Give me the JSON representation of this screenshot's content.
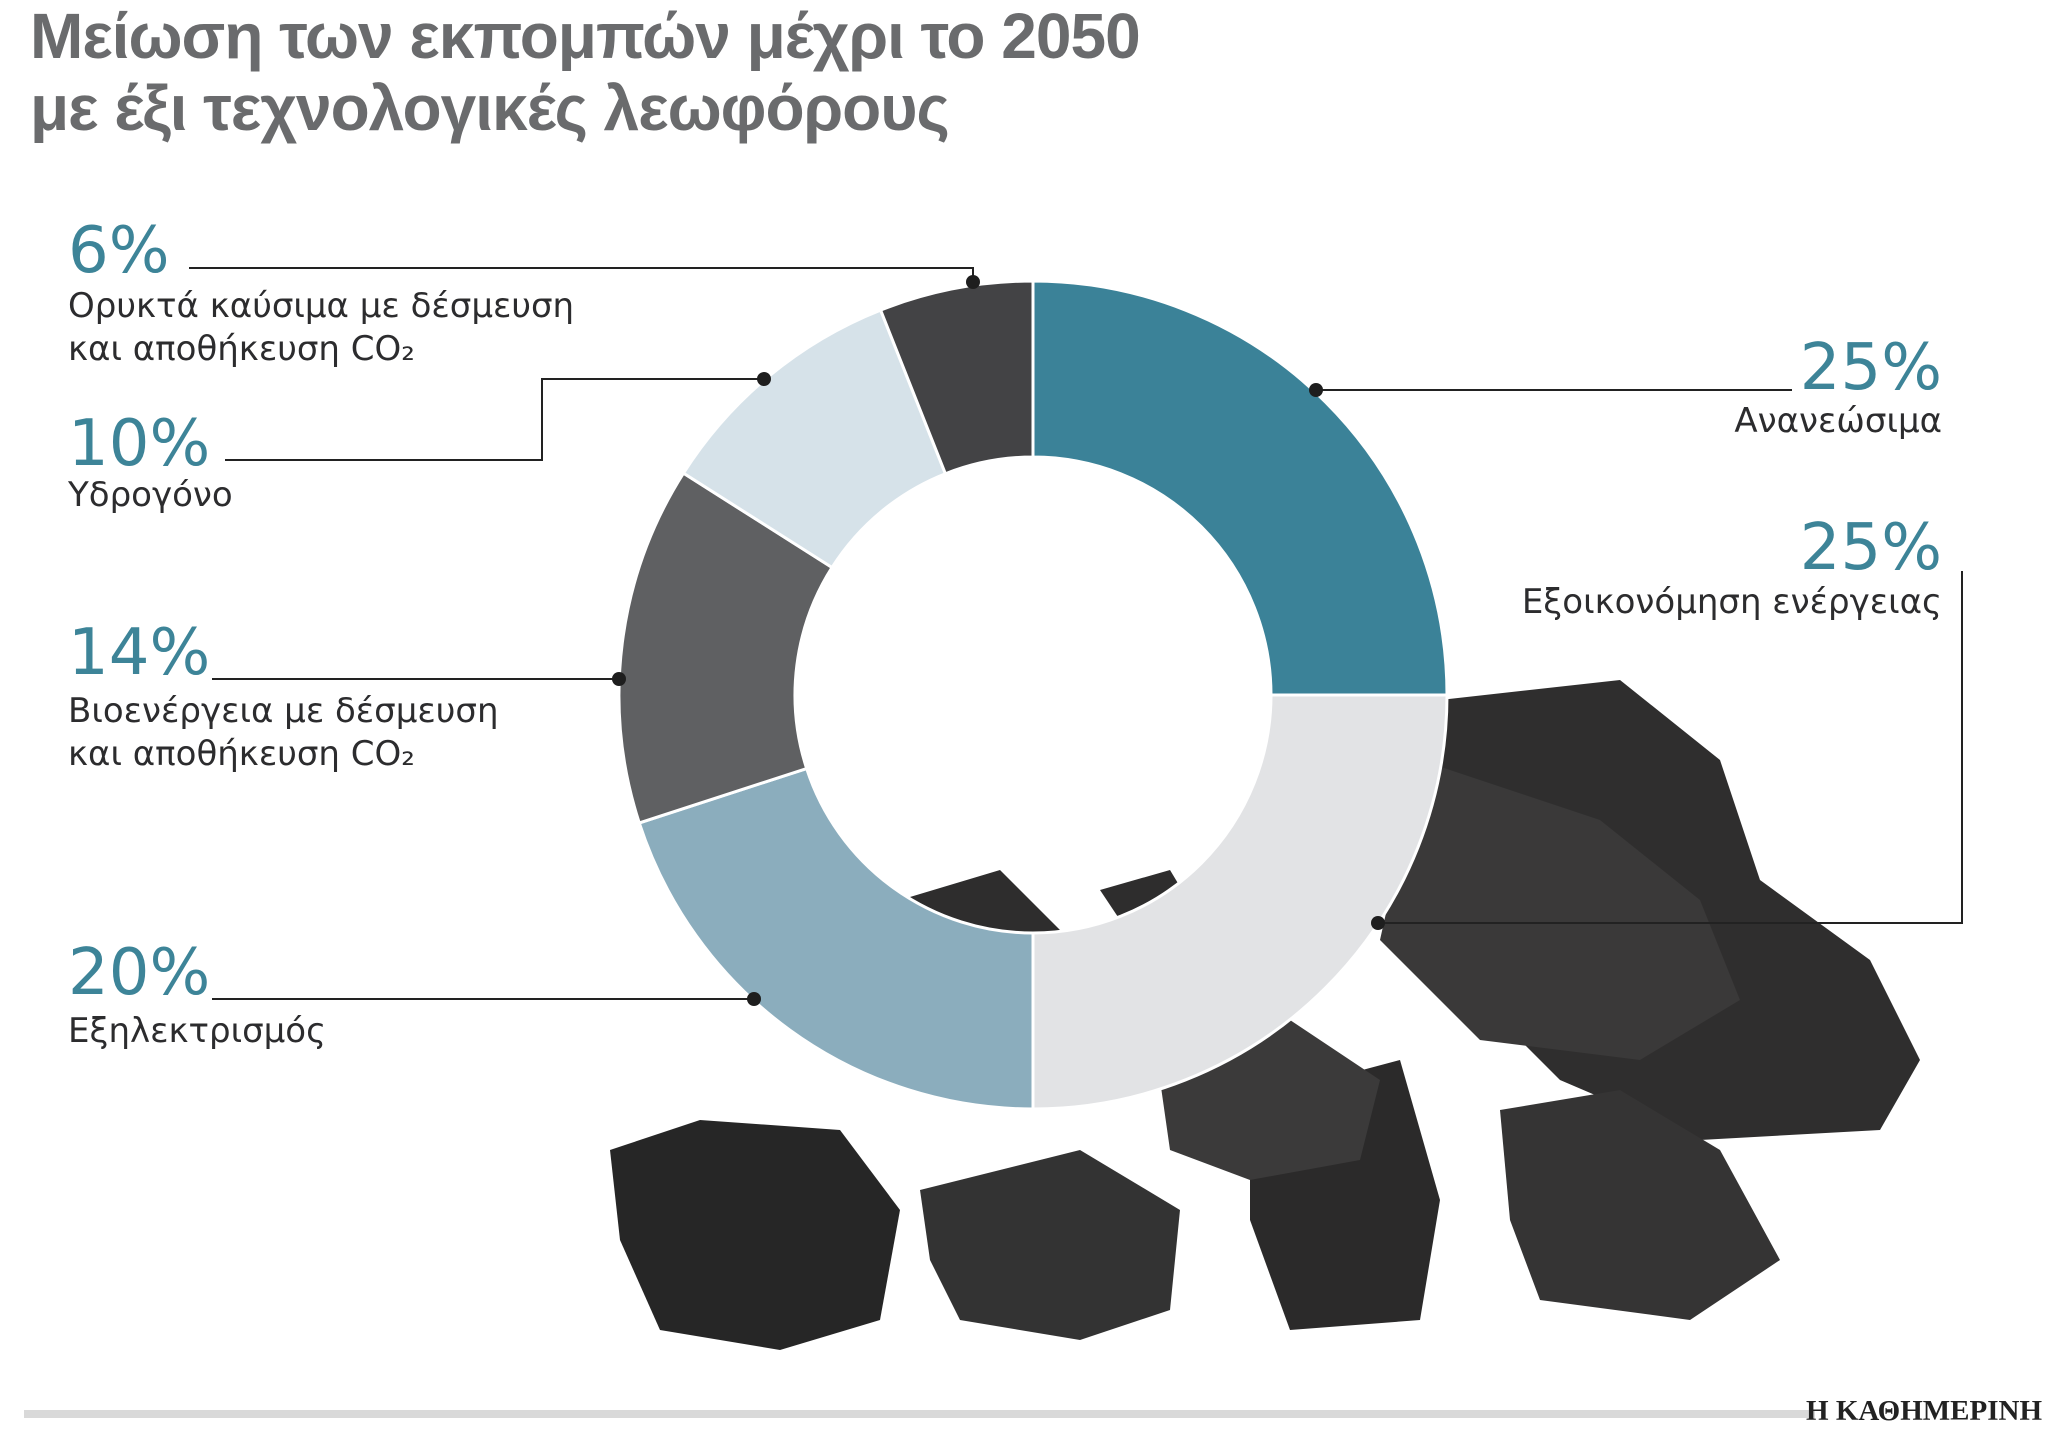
{
  "chart_data": {
    "type": "donut",
    "title": "Μείωση των εκπομπών μέχρι το 2050\nμε έξι τεχνολογικές λεωφόρους",
    "categories": [
      "Ανανεώσιμα",
      "Εξοικονόμηση ενέργειας",
      "Εξηλεκτρισμός",
      "Βιοενέργεια με δέσμευση\nκαι αποθήκευση CO₂",
      "Υδρογόνο",
      "Ορυκτά καύσιμα με δέσμευση\nκαι αποθήκευση CO₂"
    ],
    "values": [
      25,
      25,
      20,
      14,
      10,
      6
    ],
    "value_labels": [
      "25%",
      "25%",
      "20%",
      "14%",
      "10%",
      "6%"
    ],
    "colors": [
      "#3b8298",
      "#e2e3e5",
      "#8badbd",
      "#5f6062",
      "#d6e2e9",
      "#434345"
    ],
    "source": "Η ΚΑΘΗΜΕΡΙΝΗ"
  }
}
